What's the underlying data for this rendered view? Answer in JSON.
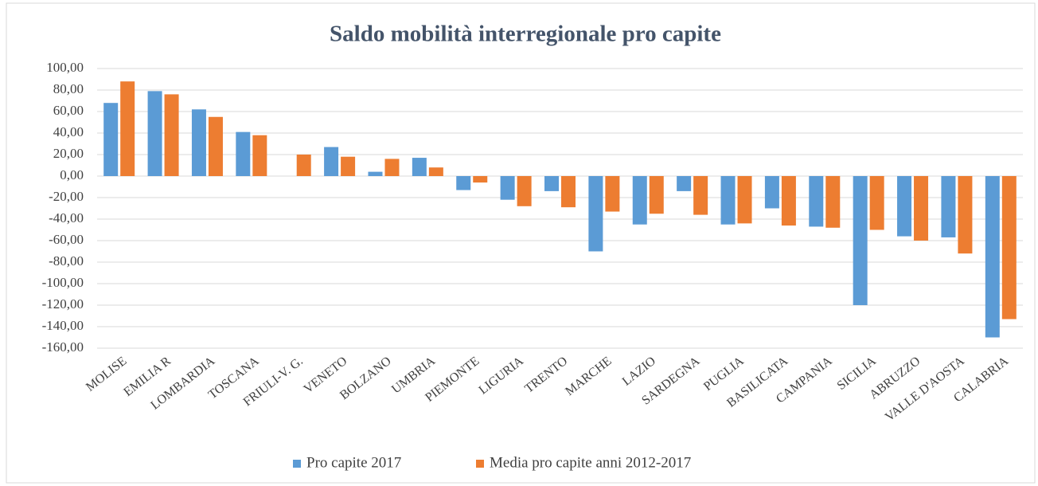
{
  "chart_data": {
    "type": "bar",
    "title": "Saldo mobilità interregionale pro capite",
    "categories": [
      "MOLISE",
      "EMILIA R",
      "LOMBARDIA",
      "TOSCANA",
      "FRIULI-V. G.",
      "VENETO",
      "BOLZANO",
      "UMBRIA",
      "PIEMONTE",
      "LIGURIA",
      "TRENTO",
      "MARCHE",
      "LAZIO",
      "SARDEGNA",
      "PUGLIA",
      "BASILICATA",
      "CAMPANIA",
      "SICILIA",
      "ABRUZZO",
      "VALLE D'AOSTA",
      "CALABRIA"
    ],
    "series": [
      {
        "name": "Pro capite 2017",
        "color": "#5b9bd5",
        "values": [
          68,
          79,
          62,
          41,
          null,
          27,
          4,
          17,
          -13,
          -22,
          -14,
          -70,
          -45,
          -14,
          -45,
          -30,
          -47,
          -120,
          -56,
          -57,
          -150
        ]
      },
      {
        "name": "Media pro capite anni 2012-2017",
        "color": "#ed7d31",
        "values": [
          88,
          76,
          55,
          38,
          20,
          18,
          16,
          8,
          -6,
          -28,
          -29,
          -33,
          -35,
          -36,
          -44,
          -46,
          -48,
          -50,
          -60,
          -72,
          -133
        ]
      }
    ],
    "ylim": [
      -160,
      100
    ],
    "yticks": [
      {
        "value": -160,
        "label": "-160,00"
      },
      {
        "value": -140,
        "label": "-140,00"
      },
      {
        "value": -120,
        "label": "-120,00"
      },
      {
        "value": -100,
        "label": "-100,00"
      },
      {
        "value": -80,
        "label": "-80,00"
      },
      {
        "value": -60,
        "label": "-60,00"
      },
      {
        "value": -40,
        "label": "-40,00"
      },
      {
        "value": -20,
        "label": "-20,00"
      },
      {
        "value": 0,
        "label": "0,00"
      },
      {
        "value": 20,
        "label": "20,00"
      },
      {
        "value": 40,
        "label": "40,00"
      },
      {
        "value": 60,
        "label": "60,00"
      },
      {
        "value": 80,
        "label": "80,00"
      },
      {
        "value": 100,
        "label": "100,00"
      }
    ],
    "grid": true,
    "legend": "bottom"
  }
}
